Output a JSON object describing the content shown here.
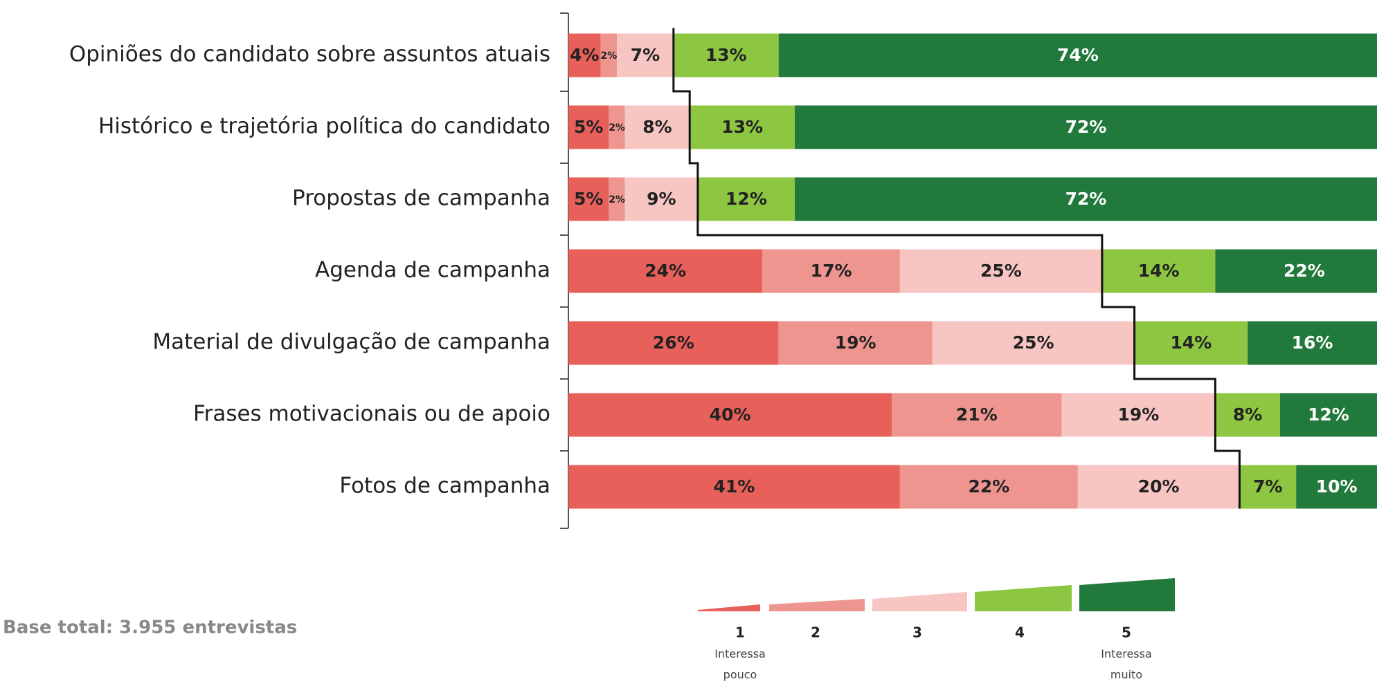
{
  "chart_data": {
    "type": "stacked-bar",
    "orientation": "horizontal",
    "categories": [
      "Opiniões do candidato sobre assuntos atuais",
      "Histórico e trajetória política do candidato",
      "Propostas de campanha",
      "Agenda de campanha",
      "Material de divulgação de campanha",
      "Frases motivacionais ou de apoio",
      "Fotos de campanha"
    ],
    "series": [
      {
        "name": "1",
        "color": "#e8605a",
        "values": [
          4,
          5,
          5,
          24,
          26,
          40,
          41
        ],
        "value_labels": [
          "4%",
          "5%",
          "5%",
          "24%",
          "26%",
          "40%",
          "41%"
        ]
      },
      {
        "name": "2",
        "color": "#ef9590",
        "values": [
          2,
          2,
          2,
          17,
          19,
          21,
          22
        ],
        "value_labels": [
          "2%",
          "2%",
          "2%",
          "17%",
          "19%",
          "21%",
          "22%"
        ]
      },
      {
        "name": "3",
        "color": "#f7c6c3",
        "values": [
          7,
          8,
          9,
          25,
          25,
          19,
          20
        ],
        "value_labels": [
          "7%",
          "8%",
          "9%",
          "25%",
          "25%",
          "19%",
          "20%"
        ]
      },
      {
        "name": "4",
        "color": "#8dc641",
        "values": [
          13,
          13,
          12,
          14,
          14,
          8,
          7
        ],
        "value_labels": [
          "13%",
          "13%",
          "12%",
          "14%",
          "14%",
          "8%",
          "7%"
        ]
      },
      {
        "name": "5",
        "color": "#217a3c",
        "values": [
          74,
          72,
          72,
          22,
          16,
          12,
          10
        ],
        "value_labels": [
          "74%",
          "72%",
          "72%",
          "22%",
          "16%",
          "12%",
          "10%"
        ]
      }
    ],
    "xlim": [
      0,
      100
    ],
    "legend_low": "Interessa pouco",
    "legend_high": "Interessa muito",
    "note": "Base total: 3.955 entrevistas"
  }
}
